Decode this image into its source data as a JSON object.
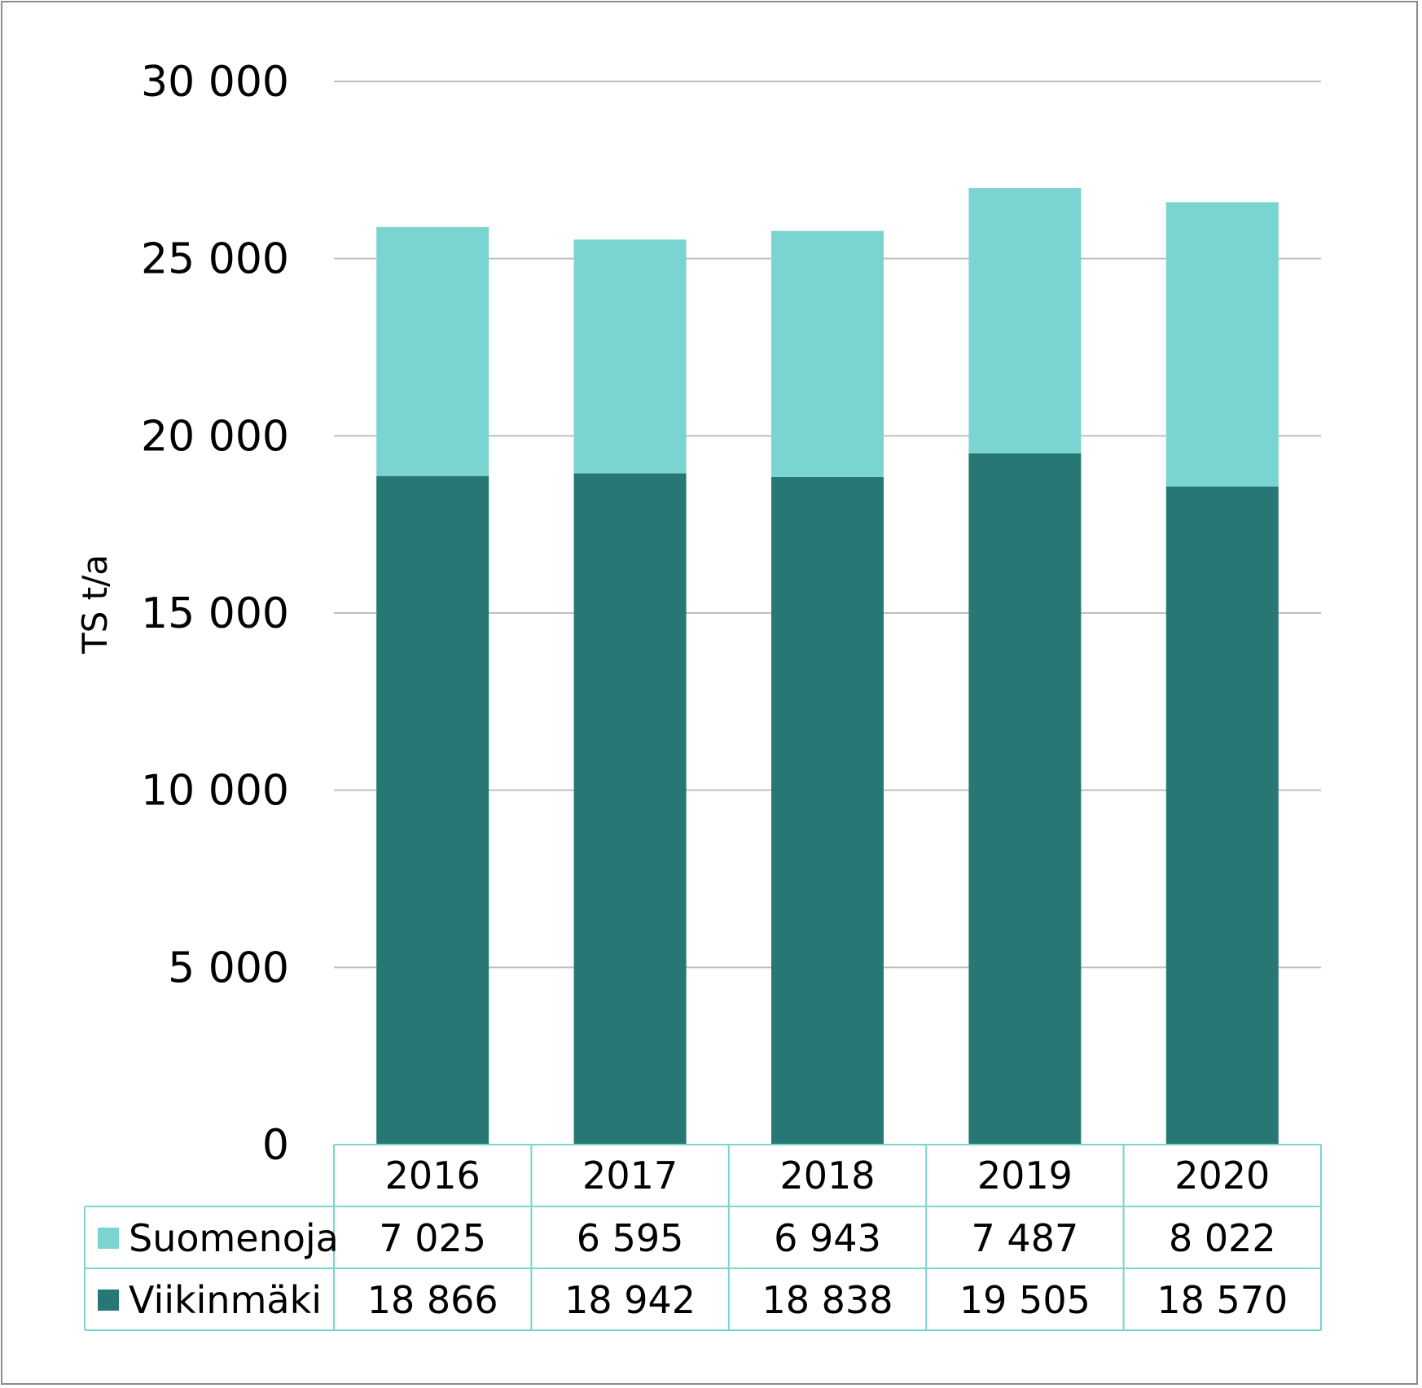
{
  "chart_data": {
    "type": "bar",
    "stacked": true,
    "categories": [
      "2016",
      "2017",
      "2018",
      "2019",
      "2020"
    ],
    "series": [
      {
        "name": "Viikinmäki",
        "color": "#277874",
        "values": [
          18866,
          18942,
          18838,
          19505,
          18570
        ],
        "labels": [
          "18 866",
          "18 942",
          "18 838",
          "19 505",
          "18 570"
        ]
      },
      {
        "name": "Suomenoja",
        "color": "#7ad4d0",
        "values": [
          7025,
          6595,
          6943,
          7487,
          8022
        ],
        "labels": [
          "7 025",
          "6 595",
          "6 943",
          "7 487",
          "8 022"
        ]
      }
    ],
    "ylabel": "TS t/a",
    "ylim": [
      0,
      30000
    ],
    "yticks": [
      0,
      5000,
      10000,
      15000,
      20000,
      25000,
      30000
    ],
    "ytick_labels": [
      "0",
      "5 000",
      "10 000",
      "15 000",
      "20 000",
      "25 000",
      "30 000"
    ],
    "grid": true,
    "legend": "data-table",
    "gridline_color": "#bfbfbf",
    "table_border_color": "#7ad4d0"
  }
}
